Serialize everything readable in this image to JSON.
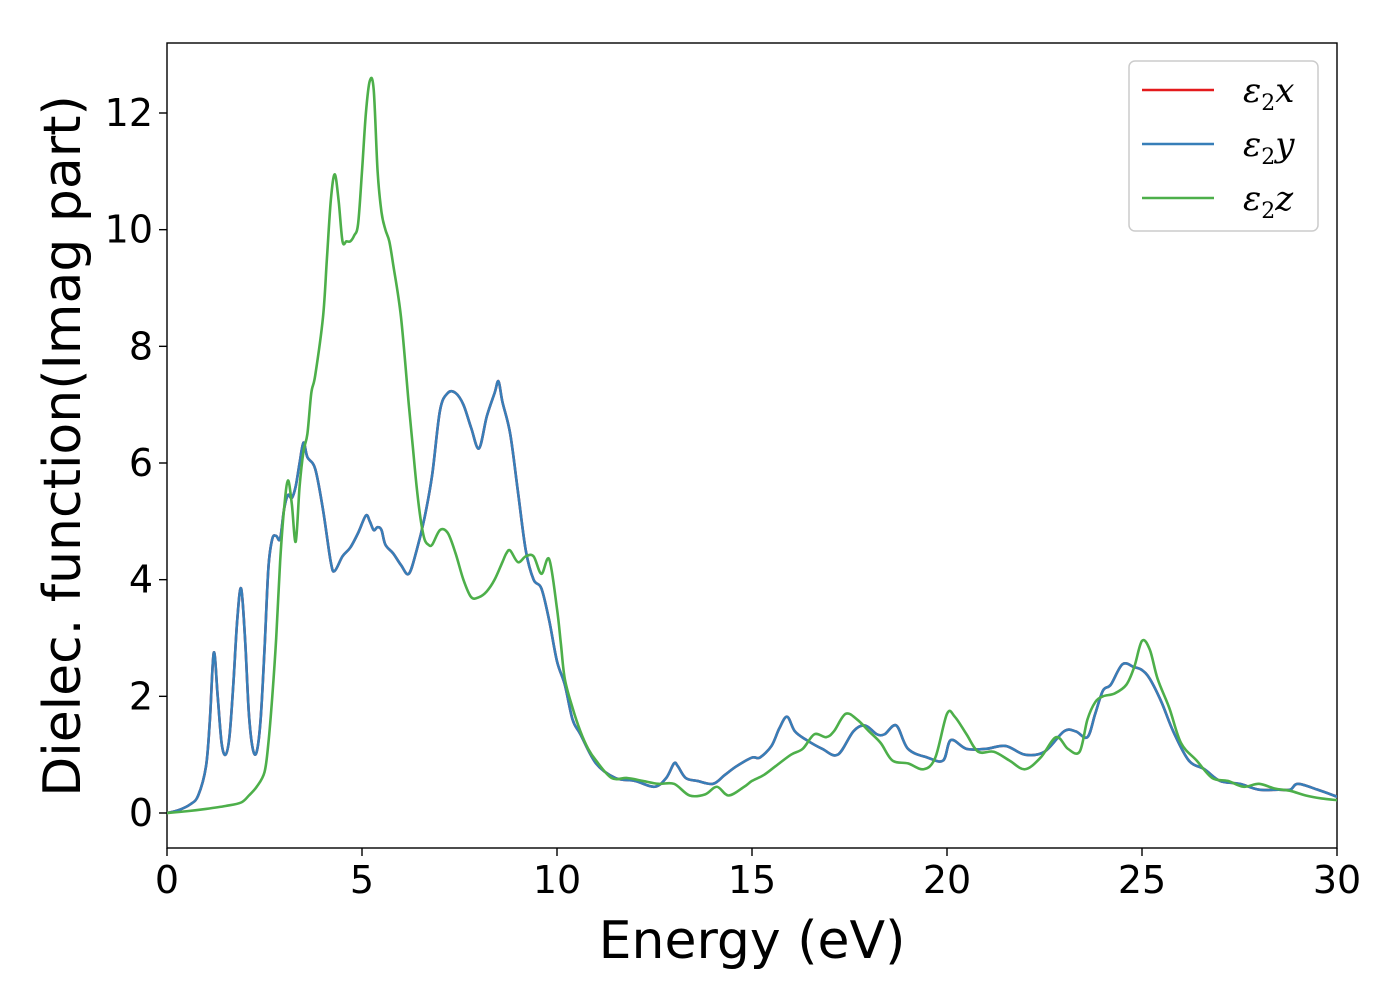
{
  "chart_data": {
    "type": "line",
    "title": "",
    "xlabel": "Energy (eV)",
    "ylabel": "Dielec. function(Imag part)",
    "xlim": [
      0,
      30
    ],
    "ylim": [
      -0.6,
      13.2
    ],
    "xticks": [
      0,
      5,
      10,
      15,
      20,
      25,
      30
    ],
    "yticks": [
      0,
      2,
      4,
      6,
      8,
      10,
      12
    ],
    "grid": false,
    "legend_position": "top-right",
    "legend": [
      {
        "symbol": "ε",
        "sub": "2",
        "suffix": "x",
        "color": "#e41a1c"
      },
      {
        "symbol": "ε",
        "sub": "2",
        "suffix": "y",
        "color": "#377eb8"
      },
      {
        "symbol": "ε",
        "sub": "2",
        "suffix": "z",
        "color": "#4daf4a"
      }
    ],
    "series": [
      {
        "color": "#e41a1c",
        "x": [
          0,
          0.3,
          0.6,
          0.8,
          1.0,
          1.1,
          1.2,
          1.3,
          1.4,
          1.5,
          1.6,
          1.7,
          1.8,
          1.9,
          2.0,
          2.1,
          2.2,
          2.3,
          2.4,
          2.5,
          2.6,
          2.7,
          2.8,
          2.9,
          3.0,
          3.1,
          3.2,
          3.3,
          3.4,
          3.5,
          3.6,
          3.8,
          4.0,
          4.2,
          4.3,
          4.5,
          4.7,
          4.9,
          5.1,
          5.2,
          5.3,
          5.4,
          5.5,
          5.6,
          5.8,
          6.0,
          6.2,
          6.4,
          6.6,
          6.8,
          7.0,
          7.2,
          7.4,
          7.6,
          7.8,
          8.0,
          8.2,
          8.4,
          8.5,
          8.6,
          8.8,
          9.0,
          9.2,
          9.4,
          9.6,
          9.8,
          10.0,
          10.2,
          10.4,
          10.6,
          11.0,
          11.5,
          12.0,
          12.5,
          12.8,
          13.0,
          13.1,
          13.3,
          13.6,
          14.0,
          14.3,
          14.6,
          15.0,
          15.2,
          15.5,
          15.7,
          15.9,
          16.1,
          16.4,
          16.8,
          17.2,
          17.6,
          17.9,
          18.2,
          18.4,
          18.7,
          19.0,
          19.5,
          19.9,
          20.1,
          20.5,
          21.0,
          21.5,
          22.0,
          22.5,
          23.0,
          23.3,
          23.6,
          23.8,
          24.0,
          24.2,
          24.5,
          24.8,
          25.0,
          25.2,
          25.5,
          25.8,
          26.2,
          26.6,
          27.0,
          27.5,
          28.0,
          28.5,
          28.8,
          29.0,
          29.5,
          30.0
        ],
        "y": [
          0.0,
          0.05,
          0.15,
          0.3,
          0.8,
          1.6,
          2.75,
          2.0,
          1.2,
          1.0,
          1.3,
          2.2,
          3.3,
          3.85,
          3.0,
          1.7,
          1.1,
          1.05,
          1.6,
          2.8,
          4.2,
          4.7,
          4.75,
          4.7,
          5.2,
          5.45,
          5.4,
          5.6,
          6.0,
          6.35,
          6.1,
          5.9,
          5.2,
          4.3,
          4.15,
          4.4,
          4.55,
          4.8,
          5.1,
          5.0,
          4.85,
          4.9,
          4.85,
          4.6,
          4.45,
          4.25,
          4.1,
          4.5,
          5.05,
          5.8,
          6.9,
          7.2,
          7.2,
          7.0,
          6.6,
          6.25,
          6.8,
          7.2,
          7.4,
          7.05,
          6.5,
          5.5,
          4.5,
          4.0,
          3.85,
          3.3,
          2.6,
          2.2,
          1.6,
          1.35,
          0.85,
          0.6,
          0.55,
          0.45,
          0.6,
          0.85,
          0.8,
          0.6,
          0.55,
          0.5,
          0.65,
          0.8,
          0.95,
          0.95,
          1.15,
          1.45,
          1.65,
          1.4,
          1.25,
          1.1,
          1.0,
          1.4,
          1.5,
          1.35,
          1.35,
          1.5,
          1.1,
          0.95,
          0.9,
          1.25,
          1.1,
          1.1,
          1.15,
          1.0,
          1.05,
          1.4,
          1.4,
          1.3,
          1.7,
          2.1,
          2.2,
          2.55,
          2.5,
          2.45,
          2.3,
          1.9,
          1.4,
          0.9,
          0.75,
          0.55,
          0.5,
          0.4,
          0.4,
          0.4,
          0.5,
          0.4,
          0.28
        ]
      },
      {
        "color": "#377eb8",
        "x": [
          0,
          0.3,
          0.6,
          0.8,
          1.0,
          1.1,
          1.2,
          1.3,
          1.4,
          1.5,
          1.6,
          1.7,
          1.8,
          1.9,
          2.0,
          2.1,
          2.2,
          2.3,
          2.4,
          2.5,
          2.6,
          2.7,
          2.8,
          2.9,
          3.0,
          3.1,
          3.2,
          3.3,
          3.4,
          3.5,
          3.6,
          3.8,
          4.0,
          4.2,
          4.3,
          4.5,
          4.7,
          4.9,
          5.1,
          5.2,
          5.3,
          5.4,
          5.5,
          5.6,
          5.8,
          6.0,
          6.2,
          6.4,
          6.6,
          6.8,
          7.0,
          7.2,
          7.4,
          7.6,
          7.8,
          8.0,
          8.2,
          8.4,
          8.5,
          8.6,
          8.8,
          9.0,
          9.2,
          9.4,
          9.6,
          9.8,
          10.0,
          10.2,
          10.4,
          10.6,
          11.0,
          11.5,
          12.0,
          12.5,
          12.8,
          13.0,
          13.1,
          13.3,
          13.6,
          14.0,
          14.3,
          14.6,
          15.0,
          15.2,
          15.5,
          15.7,
          15.9,
          16.1,
          16.4,
          16.8,
          17.2,
          17.6,
          17.9,
          18.2,
          18.4,
          18.7,
          19.0,
          19.5,
          19.9,
          20.1,
          20.5,
          21.0,
          21.5,
          22.0,
          22.5,
          23.0,
          23.3,
          23.6,
          23.8,
          24.0,
          24.2,
          24.5,
          24.8,
          25.0,
          25.2,
          25.5,
          25.8,
          26.2,
          26.6,
          27.0,
          27.5,
          28.0,
          28.5,
          28.8,
          29.0,
          29.5,
          30.0
        ],
        "y": [
          0.0,
          0.05,
          0.15,
          0.3,
          0.8,
          1.6,
          2.75,
          2.0,
          1.2,
          1.0,
          1.3,
          2.2,
          3.3,
          3.85,
          3.0,
          1.7,
          1.1,
          1.05,
          1.6,
          2.8,
          4.2,
          4.7,
          4.75,
          4.7,
          5.2,
          5.45,
          5.4,
          5.6,
          6.0,
          6.35,
          6.1,
          5.9,
          5.2,
          4.3,
          4.15,
          4.4,
          4.55,
          4.8,
          5.1,
          5.0,
          4.85,
          4.9,
          4.85,
          4.6,
          4.45,
          4.25,
          4.1,
          4.5,
          5.05,
          5.8,
          6.9,
          7.2,
          7.2,
          7.0,
          6.6,
          6.25,
          6.8,
          7.2,
          7.4,
          7.05,
          6.5,
          5.5,
          4.5,
          4.0,
          3.85,
          3.3,
          2.6,
          2.2,
          1.6,
          1.35,
          0.85,
          0.6,
          0.55,
          0.45,
          0.6,
          0.85,
          0.8,
          0.6,
          0.55,
          0.5,
          0.65,
          0.8,
          0.95,
          0.95,
          1.15,
          1.45,
          1.65,
          1.4,
          1.25,
          1.1,
          1.0,
          1.4,
          1.5,
          1.35,
          1.35,
          1.5,
          1.1,
          0.95,
          0.9,
          1.25,
          1.1,
          1.1,
          1.15,
          1.0,
          1.05,
          1.4,
          1.4,
          1.3,
          1.7,
          2.1,
          2.2,
          2.55,
          2.5,
          2.45,
          2.3,
          1.9,
          1.4,
          0.9,
          0.75,
          0.55,
          0.5,
          0.4,
          0.4,
          0.4,
          0.5,
          0.4,
          0.28
        ]
      },
      {
        "color": "#4daf4a",
        "x": [
          0,
          0.5,
          1.0,
          1.5,
          1.9,
          2.1,
          2.3,
          2.5,
          2.6,
          2.7,
          2.8,
          2.9,
          3.0,
          3.1,
          3.2,
          3.3,
          3.4,
          3.5,
          3.6,
          3.7,
          3.8,
          4.0,
          4.1,
          4.2,
          4.3,
          4.4,
          4.5,
          4.6,
          4.7,
          4.8,
          4.9,
          5.0,
          5.1,
          5.2,
          5.3,
          5.4,
          5.5,
          5.6,
          5.7,
          5.8,
          6.0,
          6.2,
          6.3,
          6.4,
          6.5,
          6.6,
          6.7,
          6.8,
          7.0,
          7.2,
          7.4,
          7.6,
          7.8,
          8.0,
          8.2,
          8.4,
          8.6,
          8.7,
          8.8,
          9.0,
          9.2,
          9.4,
          9.6,
          9.8,
          10.0,
          10.1,
          10.2,
          10.4,
          10.6,
          10.8,
          11.0,
          11.4,
          11.8,
          12.2,
          12.6,
          13.0,
          13.4,
          13.8,
          14.1,
          14.4,
          14.8,
          15.0,
          15.3,
          15.6,
          16.0,
          16.3,
          16.6,
          16.9,
          17.1,
          17.4,
          17.7,
          18.0,
          18.3,
          18.6,
          19.0,
          19.4,
          19.7,
          20.0,
          20.2,
          20.5,
          20.8,
          21.2,
          21.6,
          22.0,
          22.4,
          22.8,
          23.1,
          23.4,
          23.6,
          23.8,
          24.0,
          24.3,
          24.6,
          24.8,
          25.0,
          25.2,
          25.4,
          25.7,
          26.0,
          26.4,
          26.8,
          27.2,
          27.6,
          28.0,
          28.4,
          28.8,
          29.2,
          29.6,
          30.0
        ],
        "y": [
          0.0,
          0.03,
          0.07,
          0.12,
          0.18,
          0.3,
          0.45,
          0.7,
          1.2,
          2.0,
          3.0,
          4.3,
          5.2,
          5.7,
          5.3,
          4.65,
          5.6,
          6.2,
          6.5,
          7.2,
          7.5,
          8.5,
          9.5,
          10.5,
          10.95,
          10.5,
          9.8,
          9.8,
          9.8,
          9.9,
          10.1,
          11.0,
          12.0,
          12.55,
          12.4,
          11.0,
          10.3,
          10.0,
          9.8,
          9.4,
          8.5,
          7.0,
          6.3,
          5.6,
          5.05,
          4.7,
          4.6,
          4.6,
          4.85,
          4.8,
          4.45,
          4.0,
          3.7,
          3.7,
          3.8,
          4.0,
          4.3,
          4.45,
          4.5,
          4.3,
          4.4,
          4.4,
          4.1,
          4.35,
          3.5,
          2.9,
          2.3,
          1.8,
          1.4,
          1.1,
          0.9,
          0.6,
          0.6,
          0.55,
          0.5,
          0.5,
          0.3,
          0.32,
          0.45,
          0.3,
          0.45,
          0.55,
          0.65,
          0.8,
          1.0,
          1.1,
          1.35,
          1.3,
          1.4,
          1.7,
          1.6,
          1.4,
          1.2,
          0.9,
          0.85,
          0.75,
          0.95,
          1.7,
          1.65,
          1.35,
          1.05,
          1.05,
          0.9,
          0.75,
          0.95,
          1.3,
          1.1,
          1.05,
          1.6,
          1.9,
          2.0,
          2.05,
          2.2,
          2.5,
          2.95,
          2.8,
          2.3,
          1.8,
          1.2,
          0.9,
          0.6,
          0.55,
          0.45,
          0.5,
          0.42,
          0.38,
          0.3,
          0.25,
          0.22
        ]
      }
    ]
  }
}
